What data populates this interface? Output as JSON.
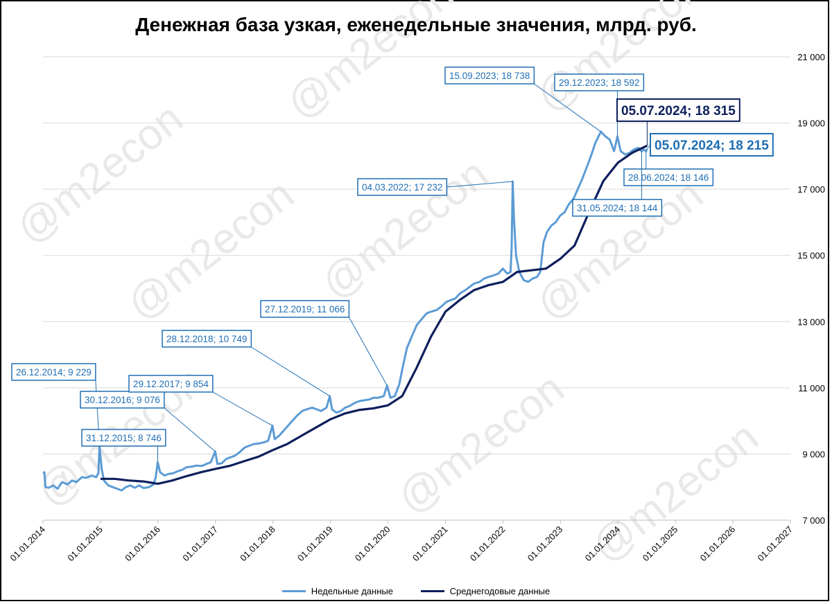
{
  "chart_data": {
    "type": "line",
    "title": "Денежная база узкая, еженедельные значения, млрд. руб.",
    "ylim": [
      7000,
      21000
    ],
    "yticks": [
      7000,
      9000,
      11000,
      13000,
      15000,
      17000,
      19000,
      21000
    ],
    "ytick_labels": [
      "7 000",
      "9 000",
      "11 000",
      "13 000",
      "15 000",
      "17 000",
      "19 000",
      "21 000"
    ],
    "xlim": [
      "2014-01-01",
      "2027-01-01"
    ],
    "xtick_labels": [
      "01.01.2014",
      "01.01.2015",
      "01.01.2016",
      "01.01.2017",
      "01.01.2018",
      "01.01.2019",
      "01.01.2020",
      "01.01.2021",
      "01.01.2022",
      "01.01.2023",
      "01.01.2024",
      "01.01.2025",
      "01.01.2026",
      "01.01.2027"
    ],
    "grid": "horizontal",
    "legend_position": "bottom",
    "series": [
      {
        "name": "Недельные данные",
        "color": "#5B9BD5",
        "points": [
          [
            "2014-01-03",
            8400
          ],
          [
            "2014-01-10",
            8450
          ],
          [
            "2014-01-17",
            8000
          ],
          [
            "2014-02-07",
            7980
          ],
          [
            "2014-03-07",
            8050
          ],
          [
            "2014-04-04",
            7950
          ],
          [
            "2014-05-02",
            8150
          ],
          [
            "2014-06-06",
            8080
          ],
          [
            "2014-07-04",
            8200
          ],
          [
            "2014-08-01",
            8150
          ],
          [
            "2014-09-05",
            8300
          ],
          [
            "2014-10-03",
            8280
          ],
          [
            "2014-11-07",
            8350
          ],
          [
            "2014-12-05",
            8300
          ],
          [
            "2014-12-19",
            8420
          ],
          [
            "2014-12-26",
            9229
          ],
          [
            "2015-01-09",
            8550
          ],
          [
            "2015-01-23",
            8200
          ],
          [
            "2015-02-20",
            8050
          ],
          [
            "2015-03-20",
            8000
          ],
          [
            "2015-04-17",
            7950
          ],
          [
            "2015-05-15",
            7900
          ],
          [
            "2015-06-12",
            8000
          ],
          [
            "2015-07-10",
            8050
          ],
          [
            "2015-08-07",
            7980
          ],
          [
            "2015-09-04",
            8050
          ],
          [
            "2015-10-02",
            7970
          ],
          [
            "2015-11-06",
            8000
          ],
          [
            "2015-12-04",
            8080
          ],
          [
            "2015-12-18",
            8300
          ],
          [
            "2015-12-31",
            8746
          ],
          [
            "2016-01-15",
            8450
          ],
          [
            "2016-02-12",
            8350
          ],
          [
            "2016-03-11",
            8400
          ],
          [
            "2016-04-08",
            8420
          ],
          [
            "2016-05-06",
            8480
          ],
          [
            "2016-06-03",
            8520
          ],
          [
            "2016-07-01",
            8600
          ],
          [
            "2016-08-05",
            8620
          ],
          [
            "2016-09-02",
            8650
          ],
          [
            "2016-10-07",
            8640
          ],
          [
            "2016-11-04",
            8700
          ],
          [
            "2016-12-02",
            8750
          ],
          [
            "2016-12-30",
            9076
          ],
          [
            "2017-01-13",
            8700
          ],
          [
            "2017-02-10",
            8720
          ],
          [
            "2017-03-10",
            8850
          ],
          [
            "2017-04-07",
            8900
          ],
          [
            "2017-05-05",
            8950
          ],
          [
            "2017-06-02",
            9050
          ],
          [
            "2017-07-07",
            9200
          ],
          [
            "2017-08-04",
            9250
          ],
          [
            "2017-09-01",
            9300
          ],
          [
            "2017-10-06",
            9320
          ],
          [
            "2017-11-03",
            9350
          ],
          [
            "2017-12-01",
            9400
          ],
          [
            "2017-12-29",
            9854
          ],
          [
            "2018-01-12",
            9450
          ],
          [
            "2018-02-09",
            9550
          ],
          [
            "2018-03-09",
            9700
          ],
          [
            "2018-04-06",
            9850
          ],
          [
            "2018-05-04",
            10000
          ],
          [
            "2018-06-01",
            10150
          ],
          [
            "2018-07-06",
            10300
          ],
          [
            "2018-08-03",
            10350
          ],
          [
            "2018-09-07",
            10400
          ],
          [
            "2018-10-05",
            10350
          ],
          [
            "2018-11-02",
            10300
          ],
          [
            "2018-12-07",
            10400
          ],
          [
            "2018-12-28",
            10749
          ],
          [
            "2019-01-11",
            10350
          ],
          [
            "2019-02-08",
            10250
          ],
          [
            "2019-03-08",
            10300
          ],
          [
            "2019-04-05",
            10400
          ],
          [
            "2019-05-03",
            10450
          ],
          [
            "2019-06-07",
            10550
          ],
          [
            "2019-07-05",
            10600
          ],
          [
            "2019-08-02",
            10620
          ],
          [
            "2019-09-06",
            10650
          ],
          [
            "2019-10-04",
            10700
          ],
          [
            "2019-11-01",
            10700
          ],
          [
            "2019-12-06",
            10750
          ],
          [
            "2019-12-27",
            11066
          ],
          [
            "2020-01-17",
            10700
          ],
          [
            "2020-02-14",
            10750
          ],
          [
            "2020-03-13",
            11100
          ],
          [
            "2020-04-03",
            11600
          ],
          [
            "2020-05-01",
            12200
          ],
          [
            "2020-06-05",
            12600
          ],
          [
            "2020-07-03",
            12900
          ],
          [
            "2020-08-07",
            13100
          ],
          [
            "2020-09-04",
            13250
          ],
          [
            "2020-10-02",
            13300
          ],
          [
            "2020-11-06",
            13350
          ],
          [
            "2020-12-04",
            13450
          ],
          [
            "2021-01-08",
            13600
          ],
          [
            "2021-02-05",
            13650
          ],
          [
            "2021-03-05",
            13700
          ],
          [
            "2021-04-02",
            13850
          ],
          [
            "2021-05-07",
            13950
          ],
          [
            "2021-06-04",
            14050
          ],
          [
            "2021-07-02",
            14150
          ],
          [
            "2021-08-06",
            14200
          ],
          [
            "2021-09-03",
            14300
          ],
          [
            "2021-10-01",
            14350
          ],
          [
            "2021-11-05",
            14400
          ],
          [
            "2021-12-03",
            14450
          ],
          [
            "2021-12-31",
            14600
          ],
          [
            "2022-01-28",
            14450
          ],
          [
            "2022-02-18",
            14500
          ],
          [
            "2022-02-25",
            15200
          ],
          [
            "2022-03-04",
            17232
          ],
          [
            "2022-03-11",
            16200
          ],
          [
            "2022-03-25",
            15000
          ],
          [
            "2022-04-15",
            14500
          ],
          [
            "2022-05-13",
            14250
          ],
          [
            "2022-06-10",
            14200
          ],
          [
            "2022-07-08",
            14300
          ],
          [
            "2022-08-05",
            14350
          ],
          [
            "2022-08-26",
            14500
          ],
          [
            "2022-09-16",
            15400
          ],
          [
            "2022-10-07",
            15700
          ],
          [
            "2022-11-04",
            15900
          ],
          [
            "2022-12-02",
            16000
          ],
          [
            "2022-12-30",
            16200
          ],
          [
            "2023-01-27",
            16300
          ],
          [
            "2023-02-24",
            16550
          ],
          [
            "2023-03-24",
            16700
          ],
          [
            "2023-04-21",
            17000
          ],
          [
            "2023-05-19",
            17300
          ],
          [
            "2023-06-16",
            17650
          ],
          [
            "2023-07-14",
            18000
          ],
          [
            "2023-08-11",
            18400
          ],
          [
            "2023-09-15",
            18738
          ],
          [
            "2023-10-13",
            18600
          ],
          [
            "2023-11-10",
            18500
          ],
          [
            "2023-12-08",
            18150
          ],
          [
            "2023-12-29",
            18592
          ],
          [
            "2024-01-19",
            18150
          ],
          [
            "2024-02-16",
            18050
          ],
          [
            "2024-03-15",
            18100
          ],
          [
            "2024-04-12",
            18200
          ],
          [
            "2024-05-10",
            18250
          ],
          [
            "2024-05-31",
            18144
          ],
          [
            "2024-06-14",
            18200
          ],
          [
            "2024-06-28",
            18146
          ],
          [
            "2024-07-05",
            18215
          ]
        ]
      },
      {
        "name": "Среднегодовые данные",
        "color": "#0D1F5C",
        "points": [
          [
            "2015-01-01",
            8250
          ],
          [
            "2015-04-01",
            8250
          ],
          [
            "2015-07-01",
            8200
          ],
          [
            "2015-10-01",
            8170
          ],
          [
            "2016-01-01",
            8100
          ],
          [
            "2016-04-01",
            8200
          ],
          [
            "2016-07-01",
            8330
          ],
          [
            "2016-10-01",
            8450
          ],
          [
            "2017-01-01",
            8550
          ],
          [
            "2017-04-01",
            8640
          ],
          [
            "2017-07-01",
            8780
          ],
          [
            "2017-10-01",
            8920
          ],
          [
            "2018-01-01",
            9120
          ],
          [
            "2018-04-01",
            9300
          ],
          [
            "2018-07-01",
            9550
          ],
          [
            "2018-10-01",
            9800
          ],
          [
            "2019-01-01",
            10050
          ],
          [
            "2019-04-01",
            10220
          ],
          [
            "2019-07-01",
            10330
          ],
          [
            "2019-10-01",
            10380
          ],
          [
            "2020-01-01",
            10470
          ],
          [
            "2020-04-01",
            10750
          ],
          [
            "2020-07-01",
            11600
          ],
          [
            "2020-10-01",
            12550
          ],
          [
            "2021-01-01",
            13300
          ],
          [
            "2021-04-01",
            13650
          ],
          [
            "2021-07-01",
            13950
          ],
          [
            "2021-10-01",
            14100
          ],
          [
            "2022-01-01",
            14200
          ],
          [
            "2022-04-01",
            14500
          ],
          [
            "2022-07-01",
            14550
          ],
          [
            "2022-10-01",
            14600
          ],
          [
            "2023-01-01",
            14900
          ],
          [
            "2023-04-01",
            15300
          ],
          [
            "2023-07-01",
            16300
          ],
          [
            "2023-10-01",
            17250
          ],
          [
            "2024-01-01",
            17800
          ],
          [
            "2024-04-01",
            18100
          ],
          [
            "2024-07-05",
            18315
          ]
        ]
      }
    ],
    "annotations": [
      {
        "text": "26.12.2014; 9 229",
        "date": "2014-12-26",
        "value": 9229,
        "style": "small"
      },
      {
        "text": "31.12.2015; 8 746",
        "date": "2015-12-31",
        "value": 8746,
        "style": "small"
      },
      {
        "text": "30.12.2016; 9 076",
        "date": "2016-12-30",
        "value": 9076,
        "style": "small"
      },
      {
        "text": "29.12.2017; 9 854",
        "date": "2017-12-29",
        "value": 9854,
        "style": "small"
      },
      {
        "text": "28.12.2018; 10 749",
        "date": "2018-12-28",
        "value": 10749,
        "style": "small"
      },
      {
        "text": "27.12.2019; 11 066",
        "date": "2019-12-27",
        "value": 11066,
        "style": "small"
      },
      {
        "text": "04.03.2022; 17 232",
        "date": "2022-03-04",
        "value": 17232,
        "style": "small"
      },
      {
        "text": "15.09.2023; 18 738",
        "date": "2023-09-15",
        "value": 18738,
        "style": "small"
      },
      {
        "text": "29.12.2023; 18 592",
        "date": "2023-12-29",
        "value": 18592,
        "style": "small"
      },
      {
        "text": "05.07.2024; 18 315",
        "date": "2024-07-05",
        "value": 18315,
        "style": "big-dark"
      },
      {
        "text": "05.07.2024; 18 215",
        "date": "2024-07-05",
        "value": 18215,
        "style": "big-blue"
      },
      {
        "text": "28.06.2024; 18 146",
        "date": "2024-06-28",
        "value": 18146,
        "style": "small"
      },
      {
        "text": "31.05.2024; 18 144",
        "date": "2024-05-31",
        "value": 18144,
        "style": "small"
      }
    ]
  },
  "watermark": "@m2econ"
}
